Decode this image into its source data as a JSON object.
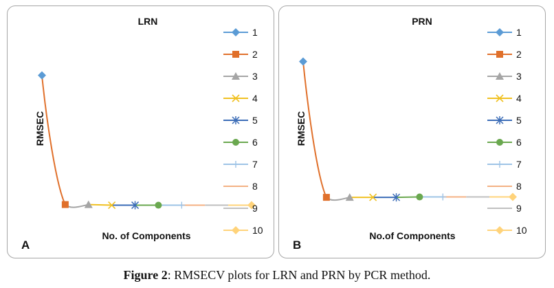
{
  "caption": {
    "bold": "Figure 2",
    "rest": ": RMSECV plots for LRN and PRN by PCR method."
  },
  "legend_colors": [
    "#5b9bd5",
    "#e0702b",
    "#a5a5a5",
    "#f0c020",
    "#3b6cb7",
    "#6aa84f",
    "#9dc3e6",
    "#f4b183",
    "#bfbfbf",
    "#ffd37a"
  ],
  "chart_data": [
    {
      "type": "line",
      "panel_label": "A",
      "title": "LRN",
      "xlabel": "No. of Components",
      "ylabel": "RMSEC",
      "x": [
        1,
        2,
        3,
        4,
        5,
        6,
        7,
        8,
        9,
        10
      ],
      "values": [
        1.0,
        0.0,
        0.0,
        -0.005,
        -0.005,
        -0.005,
        -0.005,
        -0.005,
        -0.005,
        -0.005
      ],
      "ylim": [
        -0.05,
        1.2
      ],
      "series": [
        {
          "name": "1",
          "marker": "diamond"
        },
        {
          "name": "2",
          "marker": "square"
        },
        {
          "name": "3",
          "marker": "triangle"
        },
        {
          "name": "4",
          "marker": "x"
        },
        {
          "name": "5",
          "marker": "star"
        },
        {
          "name": "6",
          "marker": "circle"
        },
        {
          "name": "7",
          "marker": "plus"
        },
        {
          "name": "8",
          "marker": "dash"
        },
        {
          "name": "9",
          "marker": "dash"
        },
        {
          "name": "10",
          "marker": "diamond"
        }
      ],
      "legend_position": "right"
    },
    {
      "type": "line",
      "panel_label": "B",
      "title": "PRN",
      "xlabel": "No.of Components",
      "ylabel": "RMSEC",
      "x": [
        1,
        2,
        3,
        4,
        5,
        6,
        7,
        8,
        9,
        10
      ],
      "values": [
        1.0,
        0.0,
        0.0,
        0.0,
        0.0,
        0.003,
        0.003,
        0.003,
        0.003,
        0.003
      ],
      "ylim": [
        -0.05,
        1.2
      ],
      "series": [
        {
          "name": "1",
          "marker": "diamond"
        },
        {
          "name": "2",
          "marker": "square"
        },
        {
          "name": "3",
          "marker": "triangle"
        },
        {
          "name": "4",
          "marker": "x"
        },
        {
          "name": "5",
          "marker": "star"
        },
        {
          "name": "6",
          "marker": "circle"
        },
        {
          "name": "7",
          "marker": "plus"
        },
        {
          "name": "8",
          "marker": "dash"
        },
        {
          "name": "9",
          "marker": "dash"
        },
        {
          "name": "10",
          "marker": "diamond"
        }
      ],
      "legend_position": "right"
    }
  ]
}
